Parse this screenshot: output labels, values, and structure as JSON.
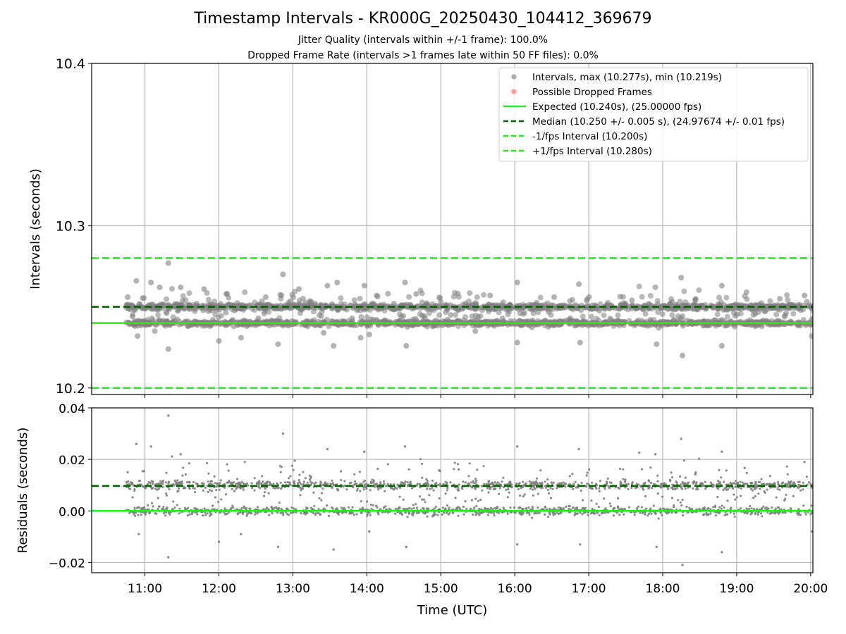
{
  "colors": {
    "points": "#808080",
    "dropped": "#ff6464",
    "expected": "#22ee22",
    "median": "#006400",
    "fps_interval": "#22ee22",
    "grid": "#b0b0b0"
  },
  "chart_data": [
    {
      "type": "scatter",
      "title": "Timestamp Intervals - KR000G_20250430_104412_369679",
      "subtitle_lines": [
        "Jitter Quality (intervals within +/-1 frame): 100.0%",
        "Dropped Frame Rate (intervals >1 frames late within 50 FF files): 0.0%"
      ],
      "ylabel": "Intervals (seconds)",
      "xlabel": "",
      "ylim": [
        10.196,
        10.4
      ],
      "yticks": [
        "10.2",
        "10.3",
        "10.4"
      ],
      "x_range_hours": [
        10.28,
        20.03
      ],
      "grid": true,
      "legend_placement": "top-right",
      "legend": [
        {
          "label": "Intervals, max (10.277s), min (10.219s)",
          "style": "marker",
          "color": "#808080"
        },
        {
          "label": "Possible Dropped Frames",
          "style": "marker",
          "color": "#ff6464"
        },
        {
          "label": "Expected (10.240s), (25.00000 fps)",
          "style": "solid",
          "color": "#22ee22"
        },
        {
          "label": "Median (10.250 +/- 0.005 s), (24.97674 +/- 0.01 fps)",
          "style": "dashed",
          "color": "#006400"
        },
        {
          "label": "-1/fps Interval (10.200s)",
          "style": "dashed",
          "color": "#22ee22"
        },
        {
          "label": "+1/fps Interval (10.280s)",
          "style": "dashed",
          "color": "#22ee22"
        }
      ],
      "reference_lines": {
        "expected": 10.24,
        "median": 10.25,
        "minus_one_fps": 10.2,
        "plus_one_fps": 10.28
      },
      "series": [
        {
          "name": "Intervals, max (10.277s), min (10.219s)",
          "points": [
            {
              "x": "10:46",
              "y": 10.256
            },
            {
              "x": "10:50",
              "y": 10.244
            },
            {
              "x": "10:53",
              "y": 10.266
            },
            {
              "x": "10:54",
              "y": 10.232
            },
            {
              "x": "10:58",
              "y": 10.249
            },
            {
              "x": "11:02",
              "y": 10.239
            },
            {
              "x": "11:05",
              "y": 10.265
            },
            {
              "x": "11:08",
              "y": 10.235
            },
            {
              "x": "11:12",
              "y": 10.262
            },
            {
              "x": "11:18",
              "y": 10.241
            },
            {
              "x": "11:19",
              "y": 10.277
            },
            {
              "x": "11:19",
              "y": 10.224
            },
            {
              "x": "11:25",
              "y": 10.251
            },
            {
              "x": "11:29",
              "y": 10.262
            },
            {
              "x": "11:35",
              "y": 10.238
            },
            {
              "x": "11:42",
              "y": 10.252
            },
            {
              "x": "11:48",
              "y": 10.261
            },
            {
              "x": "11:55",
              "y": 10.242
            },
            {
              "x": "12:00",
              "y": 10.229
            },
            {
              "x": "12:06",
              "y": 10.258
            },
            {
              "x": "12:12",
              "y": 10.238
            },
            {
              "x": "12:18",
              "y": 10.231
            },
            {
              "x": "12:25",
              "y": 10.251
            },
            {
              "x": "12:32",
              "y": 10.243
            },
            {
              "x": "12:38",
              "y": 10.256
            },
            {
              "x": "12:45",
              "y": 10.239
            },
            {
              "x": "12:48",
              "y": 10.227
            },
            {
              "x": "12:52",
              "y": 10.27
            },
            {
              "x": "12:58",
              "y": 10.249
            },
            {
              "x": "13:05",
              "y": 10.261
            },
            {
              "x": "13:12",
              "y": 10.238
            },
            {
              "x": "13:18",
              "y": 10.252
            },
            {
              "x": "13:25",
              "y": 10.234
            },
            {
              "x": "13:28",
              "y": 10.263
            },
            {
              "x": "13:33",
              "y": 10.226
            },
            {
              "x": "13:36",
              "y": 10.265
            },
            {
              "x": "13:42",
              "y": 10.249
            },
            {
              "x": "13:48",
              "y": 10.243
            },
            {
              "x": "13:55",
              "y": 10.231
            },
            {
              "x": "13:58",
              "y": 10.263
            },
            {
              "x": "14:02",
              "y": 10.233
            },
            {
              "x": "14:08",
              "y": 10.257
            },
            {
              "x": "14:15",
              "y": 10.239
            },
            {
              "x": "14:22",
              "y": 10.252
            },
            {
              "x": "14:28",
              "y": 10.244
            },
            {
              "x": "14:31",
              "y": 10.265
            },
            {
              "x": "14:32",
              "y": 10.226
            },
            {
              "x": "14:40",
              "y": 10.258
            },
            {
              "x": "14:50",
              "y": 10.24
            },
            {
              "x": "15:00",
              "y": 10.253
            },
            {
              "x": "15:08",
              "y": 10.245
            },
            {
              "x": "15:20",
              "y": 10.252
            },
            {
              "x": "15:28",
              "y": 10.235
            },
            {
              "x": "15:40",
              "y": 10.257
            },
            {
              "x": "15:50",
              "y": 10.243
            },
            {
              "x": "16:02",
              "y": 10.265
            },
            {
              "x": "16:02",
              "y": 10.228
            },
            {
              "x": "16:12",
              "y": 10.249
            },
            {
              "x": "16:22",
              "y": 10.24
            },
            {
              "x": "16:32",
              "y": 10.256
            },
            {
              "x": "16:45",
              "y": 10.243
            },
            {
              "x": "16:52",
              "y": 10.264
            },
            {
              "x": "16:53",
              "y": 10.228
            },
            {
              "x": "17:05",
              "y": 10.251
            },
            {
              "x": "17:20",
              "y": 10.24
            },
            {
              "x": "17:35",
              "y": 10.254
            },
            {
              "x": "17:50",
              "y": 10.242
            },
            {
              "x": "17:54",
              "y": 10.262
            },
            {
              "x": "17:55",
              "y": 10.227
            },
            {
              "x": "18:05",
              "y": 10.251
            },
            {
              "x": "18:12",
              "y": 10.241
            },
            {
              "x": "18:15",
              "y": 10.268
            },
            {
              "x": "18:16",
              "y": 10.22
            },
            {
              "x": "18:25",
              "y": 10.249
            },
            {
              "x": "18:35",
              "y": 10.239
            },
            {
              "x": "18:48",
              "y": 10.263
            },
            {
              "x": "18:48",
              "y": 10.226
            },
            {
              "x": "18:58",
              "y": 10.251
            },
            {
              "x": "19:08",
              "y": 10.259
            },
            {
              "x": "19:15",
              "y": 10.238
            },
            {
              "x": "19:25",
              "y": 10.25
            },
            {
              "x": "19:35",
              "y": 10.255
            },
            {
              "x": "19:45",
              "y": 10.24
            },
            {
              "x": "19:55",
              "y": 10.257
            },
            {
              "x": "20:01",
              "y": 10.232
            }
          ]
        }
      ]
    },
    {
      "type": "scatter",
      "ylabel": "Residuals (seconds)",
      "xlabel": "Time (UTC)",
      "ylim": [
        -0.024,
        0.04
      ],
      "yticks": [
        "−0.02",
        "0.00",
        "0.02",
        "0.04"
      ],
      "xticks": [
        "11:00",
        "12:00",
        "13:00",
        "14:00",
        "15:00",
        "16:00",
        "17:00",
        "18:00",
        "19:00",
        "20:00"
      ],
      "x_range_hours": [
        10.28,
        20.03
      ],
      "grid": true,
      "reference_lines": {
        "expected": 0.0,
        "median": 0.0097
      },
      "series": [
        {
          "name": "Residuals",
          "points": [
            {
              "x": "10:46",
              "y": 0.015
            },
            {
              "x": "10:53",
              "y": 0.026
            },
            {
              "x": "10:55",
              "y": -0.009
            },
            {
              "x": "11:05",
              "y": 0.025
            },
            {
              "x": "11:19",
              "y": 0.037
            },
            {
              "x": "11:19",
              "y": -0.018
            },
            {
              "x": "11:29",
              "y": 0.022
            },
            {
              "x": "11:55",
              "y": 0.002
            },
            {
              "x": "12:00",
              "y": -0.012
            },
            {
              "x": "12:18",
              "y": -0.009
            },
            {
              "x": "12:48",
              "y": -0.014
            },
            {
              "x": "12:52",
              "y": 0.03
            },
            {
              "x": "13:28",
              "y": 0.024
            },
            {
              "x": "13:33",
              "y": -0.015
            },
            {
              "x": "13:58",
              "y": 0.023
            },
            {
              "x": "14:02",
              "y": -0.008
            },
            {
              "x": "14:31",
              "y": 0.025
            },
            {
              "x": "14:32",
              "y": -0.014
            },
            {
              "x": "16:02",
              "y": 0.025
            },
            {
              "x": "16:02",
              "y": -0.013
            },
            {
              "x": "16:52",
              "y": 0.024
            },
            {
              "x": "16:53",
              "y": -0.013
            },
            {
              "x": "17:54",
              "y": 0.022
            },
            {
              "x": "17:55",
              "y": -0.014
            },
            {
              "x": "18:15",
              "y": 0.028
            },
            {
              "x": "18:16",
              "y": -0.021
            },
            {
              "x": "18:48",
              "y": 0.023
            },
            {
              "x": "18:48",
              "y": -0.016
            },
            {
              "x": "19:55",
              "y": 0.019
            },
            {
              "x": "20:01",
              "y": -0.008
            }
          ]
        }
      ]
    }
  ]
}
